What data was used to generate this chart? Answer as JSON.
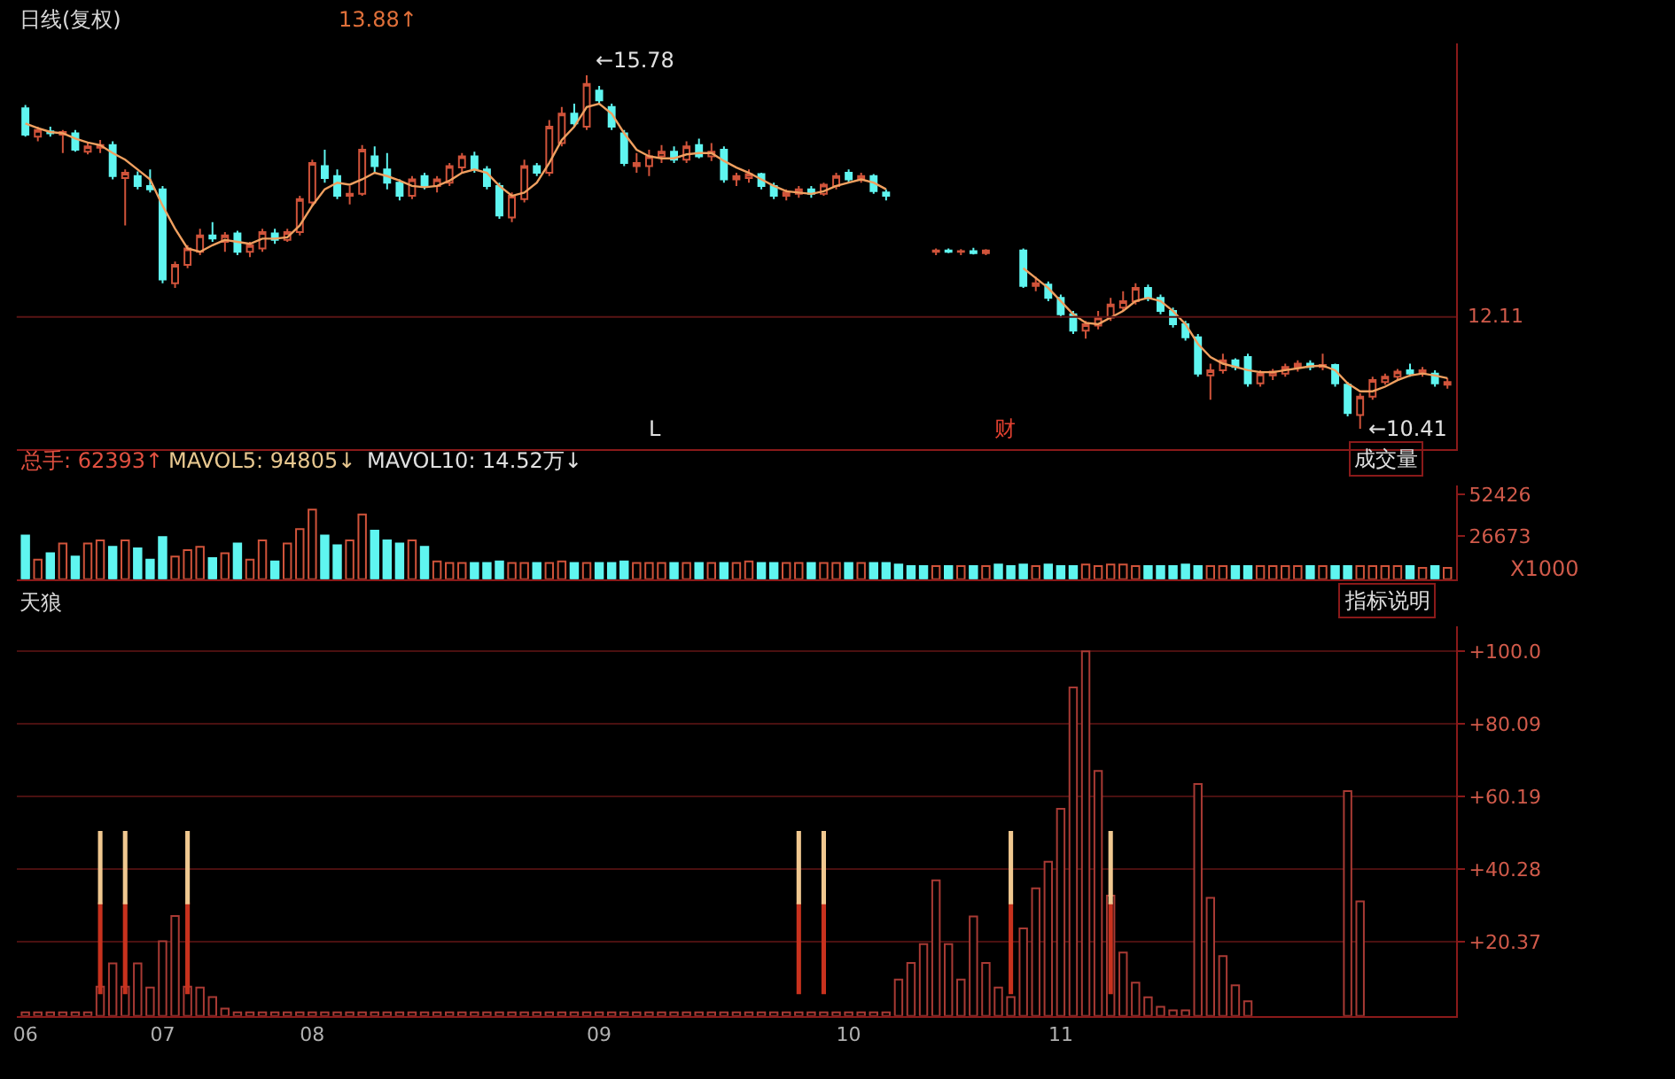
{
  "chart_data": [
    {
      "type": "candlestick",
      "title": "日线(复权)",
      "subtitle": "13.88↑",
      "categories": [
        "06",
        null,
        null,
        null,
        null,
        null,
        null,
        null,
        null,
        null,
        null,
        "07",
        null,
        null,
        null,
        null,
        null,
        null,
        null,
        null,
        null,
        null,
        null,
        "08",
        null,
        null,
        null,
        null,
        null,
        null,
        null,
        null,
        null,
        null,
        null,
        null,
        null,
        null,
        null,
        null,
        null,
        null,
        null,
        null,
        null,
        null,
        "09",
        null,
        null,
        null,
        null,
        null,
        null,
        null,
        null,
        null,
        null,
        null,
        null,
        null,
        null,
        null,
        null,
        null,
        null,
        null,
        "10",
        null,
        null,
        null,
        null,
        null,
        null,
        null,
        null,
        null,
        null,
        null,
        null,
        null,
        null,
        null,
        null,
        "11",
        null,
        null,
        null,
        null,
        null,
        null,
        null,
        null,
        null,
        null,
        null,
        null,
        null,
        null,
        null,
        null,
        null,
        null,
        null,
        null,
        null,
        null,
        null,
        null,
        null,
        null,
        null,
        null,
        null,
        null,
        null
      ],
      "ohlc": [
        [
          15.28,
          15.33,
          14.85,
          14.88
        ],
        [
          14.85,
          15.0,
          14.78,
          14.95
        ],
        [
          14.93,
          15.0,
          14.85,
          14.9
        ],
        [
          14.88,
          14.95,
          14.6,
          14.92
        ],
        [
          14.9,
          14.95,
          14.62,
          14.65
        ],
        [
          14.62,
          14.75,
          14.58,
          14.7
        ],
        [
          14.68,
          14.8,
          14.6,
          14.72
        ],
        [
          14.72,
          14.78,
          14.2,
          14.25
        ],
        [
          14.22,
          14.35,
          13.5,
          14.3
        ],
        [
          14.25,
          14.32,
          14.05,
          14.1
        ],
        [
          14.1,
          14.35,
          14.0,
          14.05
        ],
        [
          14.05,
          14.1,
          12.62,
          12.68
        ],
        [
          12.62,
          12.95,
          12.55,
          12.9
        ],
        [
          12.9,
          13.2,
          12.85,
          13.15
        ],
        [
          13.1,
          13.45,
          13.05,
          13.35
        ],
        [
          13.35,
          13.55,
          13.25,
          13.3
        ],
        [
          13.25,
          13.4,
          13.1,
          13.35
        ],
        [
          13.38,
          13.42,
          13.05,
          13.1
        ],
        [
          13.1,
          13.25,
          13.02,
          13.2
        ],
        [
          13.15,
          13.45,
          13.1,
          13.4
        ],
        [
          13.38,
          13.45,
          13.22,
          13.28
        ],
        [
          13.28,
          13.45,
          13.25,
          13.4
        ],
        [
          13.4,
          13.95,
          13.35,
          13.9
        ],
        [
          13.85,
          14.5,
          13.8,
          14.45
        ],
        [
          14.4,
          14.65,
          14.15,
          14.22
        ],
        [
          14.25,
          14.35,
          13.9,
          13.95
        ],
        [
          13.95,
          14.1,
          13.82,
          13.98
        ],
        [
          13.98,
          14.72,
          13.95,
          14.65
        ],
        [
          14.55,
          14.7,
          14.3,
          14.4
        ],
        [
          14.35,
          14.6,
          14.05,
          14.15
        ],
        [
          14.15,
          14.2,
          13.88,
          13.95
        ],
        [
          13.95,
          14.25,
          13.9,
          14.2
        ],
        [
          14.25,
          14.3,
          14.05,
          14.1
        ],
        [
          14.1,
          14.25,
          14.0,
          14.2
        ],
        [
          14.15,
          14.45,
          14.1,
          14.4
        ],
        [
          14.38,
          14.6,
          14.3,
          14.55
        ],
        [
          14.55,
          14.62,
          14.3,
          14.35
        ],
        [
          14.35,
          14.4,
          14.05,
          14.1
        ],
        [
          14.1,
          14.15,
          13.6,
          13.65
        ],
        [
          13.62,
          14.0,
          13.55,
          13.95
        ],
        [
          13.9,
          14.5,
          13.85,
          14.4
        ],
        [
          14.4,
          14.45,
          14.25,
          14.3
        ],
        [
          14.3,
          15.1,
          14.25,
          15.0
        ],
        [
          14.75,
          15.3,
          14.7,
          15.2
        ],
        [
          15.2,
          15.35,
          15.0,
          15.05
        ],
        [
          15.0,
          15.78,
          14.95,
          15.65
        ],
        [
          15.55,
          15.62,
          15.35,
          15.4
        ],
        [
          15.3,
          15.35,
          14.95,
          15.0
        ],
        [
          14.9,
          14.95,
          14.4,
          14.45
        ],
        [
          14.4,
          14.6,
          14.3,
          14.45
        ],
        [
          14.4,
          14.65,
          14.25,
          14.55
        ],
        [
          14.55,
          14.72,
          14.45,
          14.62
        ],
        [
          14.62,
          14.7,
          14.45,
          14.5
        ],
        [
          14.5,
          14.78,
          14.45,
          14.7
        ],
        [
          14.72,
          14.82,
          14.52,
          14.55
        ],
        [
          14.55,
          14.75,
          14.48,
          14.62
        ],
        [
          14.65,
          14.7,
          14.15,
          14.2
        ],
        [
          14.2,
          14.3,
          14.1,
          14.25
        ],
        [
          14.22,
          14.35,
          14.15,
          14.28
        ],
        [
          14.28,
          14.3,
          14.05,
          14.1
        ],
        [
          14.1,
          14.15,
          13.9,
          13.95
        ],
        [
          13.95,
          14.05,
          13.88,
          14.0
        ],
        [
          13.98,
          14.1,
          13.92,
          14.05
        ],
        [
          14.05,
          14.1,
          13.92,
          13.98
        ],
        [
          13.98,
          14.15,
          13.95,
          14.12
        ],
        [
          14.1,
          14.3,
          14.05,
          14.25
        ],
        [
          14.3,
          14.35,
          14.15,
          14.2
        ],
        [
          14.2,
          14.3,
          14.15,
          14.25
        ],
        [
          14.25,
          14.28,
          13.98,
          14.02
        ],
        [
          14.0,
          14.05,
          13.88,
          13.95
        ],
        null,
        null,
        null,
        [
          13.1,
          13.15,
          13.05,
          13.12
        ],
        [
          13.12,
          13.15,
          13.08,
          13.1
        ],
        [
          13.1,
          13.14,
          13.05,
          13.11
        ],
        [
          13.11,
          13.16,
          13.06,
          13.08
        ],
        [
          13.08,
          13.14,
          13.05,
          13.12
        ],
        null,
        null,
        [
          13.12,
          13.15,
          12.55,
          12.58
        ],
        [
          12.58,
          12.72,
          12.5,
          12.62
        ],
        [
          12.6,
          12.65,
          12.35,
          12.4
        ],
        [
          12.4,
          12.45,
          12.1,
          12.15
        ],
        [
          12.15,
          12.2,
          11.85,
          11.9
        ],
        [
          11.9,
          12.05,
          11.78,
          12.0
        ],
        [
          11.98,
          12.2,
          11.92,
          12.1
        ],
        [
          12.1,
          12.4,
          12.05,
          12.3
        ],
        [
          12.25,
          12.5,
          12.2,
          12.35
        ],
        [
          12.35,
          12.62,
          12.3,
          12.55
        ],
        [
          12.55,
          12.6,
          12.35,
          12.4
        ],
        [
          12.4,
          12.45,
          12.15,
          12.2
        ],
        [
          12.2,
          12.25,
          11.95,
          12.0
        ],
        [
          12.0,
          12.05,
          11.75,
          11.8
        ],
        [
          11.8,
          11.85,
          11.2,
          11.25
        ],
        [
          11.22,
          11.4,
          10.85,
          11.3
        ],
        [
          11.3,
          11.55,
          11.25,
          11.45
        ],
        [
          11.45,
          11.48,
          11.3,
          11.35
        ],
        [
          11.5,
          11.55,
          11.05,
          11.1
        ],
        [
          11.1,
          11.3,
          11.05,
          11.25
        ],
        [
          11.22,
          11.32,
          11.15,
          11.28
        ],
        [
          11.25,
          11.4,
          11.2,
          11.35
        ],
        [
          11.35,
          11.45,
          11.28,
          11.4
        ],
        [
          11.4,
          11.45,
          11.3,
          11.35
        ],
        [
          11.35,
          11.55,
          11.3,
          11.38
        ],
        [
          11.38,
          11.4,
          11.05,
          11.1
        ],
        [
          11.08,
          11.12,
          10.6,
          10.65
        ],
        [
          10.62,
          10.95,
          10.41,
          10.9
        ],
        [
          10.9,
          11.2,
          10.85,
          11.15
        ],
        [
          11.12,
          11.25,
          11.08,
          11.2
        ],
        [
          11.2,
          11.32,
          11.15,
          11.28
        ],
        [
          11.3,
          11.4,
          11.2,
          11.25
        ],
        [
          11.25,
          11.35,
          11.2,
          11.3
        ],
        [
          11.25,
          11.3,
          11.05,
          11.1
        ],
        [
          11.08,
          11.18,
          11.02,
          11.12
        ]
      ],
      "colors": [
        "#5ff5f0",
        "#d0533a",
        "#5ff5f0",
        "#d0533a",
        "#5ff5f0",
        "#d0533a",
        "#d0533a",
        "#5ff5f0",
        "#d0533a",
        "#5ff5f0",
        "#5ff5f0",
        "#5ff5f0",
        "#d0533a",
        "#d0533a",
        "#d0533a",
        "#5ff5f0",
        "#d0533a",
        "#5ff5f0",
        "#d0533a",
        "#d0533a",
        "#5ff5f0",
        "#d0533a",
        "#d0533a",
        "#d0533a",
        "#5ff5f0",
        "#5ff5f0",
        "#d0533a",
        "#d0533a",
        "#5ff5f0",
        "#5ff5f0",
        "#5ff5f0",
        "#d0533a",
        "#5ff5f0",
        "#d0533a",
        "#d0533a",
        "#d0533a",
        "#5ff5f0",
        "#5ff5f0",
        "#5ff5f0",
        "#d0533a",
        "#d0533a",
        "#5ff5f0",
        "#d0533a",
        "#d0533a",
        "#5ff5f0",
        "#d0533a",
        "#5ff5f0",
        "#5ff5f0",
        "#5ff5f0",
        "#d0533a",
        "#d0533a",
        "#d0533a",
        "#5ff5f0",
        "#d0533a",
        "#5ff5f0",
        "#d0533a",
        "#5ff5f0",
        "#d0533a",
        "#d0533a",
        "#5ff5f0",
        "#5ff5f0",
        "#d0533a",
        "#d0533a",
        "#5ff5f0",
        "#d0533a",
        "#d0533a",
        "#5ff5f0",
        "#d0533a",
        "#5ff5f0",
        "#5ff5f0",
        "#5ff5f0",
        "#5ff5f0",
        "#5ff5f0",
        "#d0533a",
        "#5ff5f0",
        "#d0533a",
        "#5ff5f0",
        "#d0533a",
        "#5ff5f0",
        "#5ff5f0",
        "#5ff5f0",
        "#d0533a",
        "#5ff5f0",
        "#5ff5f0",
        "#5ff5f0",
        "#d0533a",
        "#d0533a",
        "#d0533a",
        "#d0533a",
        "#d0533a",
        "#5ff5f0",
        "#5ff5f0",
        "#5ff5f0",
        "#5ff5f0",
        "#5ff5f0",
        "#d0533a",
        "#d0533a",
        "#5ff5f0",
        "#5ff5f0",
        "#d0533a",
        "#d0533a",
        "#d0533a",
        "#d0533a",
        "#5ff5f0",
        "#d0533a",
        "#5ff5f0",
        "#5ff5f0",
        "#d0533a",
        "#d0533a",
        "#d0533a",
        "#d0533a",
        "#5ff5f0",
        "#d0533a",
        "#5ff5f0",
        "#d0533a"
      ],
      "series": [
        {
          "type": "line",
          "color": "#f0a060",
          "values": [
            15.05,
            14.98,
            14.92,
            14.9,
            14.82,
            14.76,
            14.72,
            14.6,
            14.5,
            14.35,
            14.2,
            13.8,
            13.45,
            13.15,
            13.1,
            13.2,
            13.28,
            13.25,
            13.22,
            13.3,
            13.3,
            13.32,
            13.5,
            13.8,
            14.05,
            14.15,
            14.12,
            14.2,
            14.3,
            14.25,
            14.18,
            14.1,
            14.08,
            14.1,
            14.18,
            14.3,
            14.35,
            14.3,
            14.1,
            13.95,
            14.0,
            14.15,
            14.45,
            14.8,
            15.0,
            15.3,
            15.35,
            15.2,
            14.9,
            14.65,
            14.55,
            14.52,
            14.52,
            14.58,
            14.6,
            14.6,
            14.48,
            14.38,
            14.3,
            14.2,
            14.1,
            14.02,
            14.0,
            13.98,
            14.02,
            14.1,
            14.15,
            14.2,
            14.15,
            14.05,
            null,
            null,
            null,
            null,
            null,
            null,
            null,
            null,
            null,
            null,
            12.85,
            12.7,
            12.55,
            12.35,
            12.15,
            12.02,
            12.0,
            12.1,
            12.2,
            12.35,
            12.4,
            12.35,
            12.2,
            12.0,
            11.7,
            11.5,
            11.4,
            11.35,
            11.3,
            11.27,
            11.27,
            11.3,
            11.33,
            11.36,
            11.37,
            11.3,
            11.1,
            10.98,
            10.98,
            11.05,
            11.15,
            11.22,
            11.25,
            11.22,
            11.18
          ]
        }
      ],
      "ref_lines": [
        {
          "axis": "y",
          "value": 12.11,
          "label": "12.11",
          "color": "#5a1414"
        }
      ],
      "tick_labels": false,
      "annotations": [
        "←15.78",
        "←10.41",
        "L",
        "财"
      ]
    },
    {
      "type": "bar",
      "title": "总手: 62393↑",
      "categories": [
        "06",
        null,
        null,
        null,
        null,
        null,
        null,
        null,
        null,
        null,
        null,
        "07",
        null,
        null,
        null,
        null,
        null,
        null,
        null,
        null,
        null,
        null,
        null,
        "08",
        null,
        null,
        null,
        null,
        null,
        null,
        null,
        null,
        null,
        null,
        null,
        null,
        null,
        null,
        null,
        null,
        null,
        null,
        null,
        null,
        null,
        null,
        "09",
        null,
        null,
        null,
        null,
        null,
        null,
        null,
        null,
        null,
        null,
        null,
        null,
        null,
        null,
        null,
        null,
        null,
        null,
        null,
        "10",
        null,
        null,
        null,
        null,
        null,
        null,
        null,
        null,
        null,
        null,
        null,
        null,
        null,
        null,
        null,
        null,
        "11",
        null,
        null,
        null,
        null,
        null,
        null,
        null,
        null,
        null,
        null,
        null,
        null,
        null,
        null,
        null,
        null,
        null,
        null,
        null,
        null,
        null,
        null,
        null,
        null,
        null,
        null,
        null,
        null,
        null,
        null,
        null
      ],
      "values": [
        27000,
        12000,
        16000,
        22000,
        14000,
        22000,
        24000,
        20000,
        24000,
        19000,
        12000,
        26000,
        14000,
        18000,
        20000,
        13000,
        16000,
        22000,
        12000,
        24000,
        11000,
        22000,
        31000,
        43000,
        27000,
        21000,
        24000,
        40000,
        30000,
        24000,
        22000,
        24000,
        20000,
        11000,
        10000,
        10000,
        10000,
        10000,
        11000,
        10000,
        10000,
        10000,
        10000,
        11000,
        10000,
        10000,
        10000,
        10000,
        11000,
        10000,
        10000,
        10000,
        10000,
        10000,
        10000,
        10000,
        10000,
        10000,
        11000,
        10000,
        10000,
        10000,
        10000,
        10000,
        10000,
        10000,
        10000,
        10000,
        10000,
        10000,
        9000,
        8000,
        8000,
        8000,
        8000,
        8000,
        8000,
        8000,
        9000,
        8000,
        9000,
        8000,
        9000,
        8000,
        8000,
        9000,
        8000,
        9000,
        9000,
        8000,
        8000,
        8000,
        8000,
        9000,
        8000,
        8000,
        8000,
        8000,
        8000,
        8000,
        8000,
        8000,
        8000,
        8000,
        8000,
        8000,
        8000,
        8000,
        8000,
        8000,
        8000,
        8000,
        7000,
        8000,
        7000
      ],
      "colors": [
        "#5ff5f0",
        "#d0533a",
        "#5ff5f0",
        "#d0533a",
        "#5ff5f0",
        "#d0533a",
        "#d0533a",
        "#5ff5f0",
        "#d0533a",
        "#5ff5f0",
        "#5ff5f0",
        "#5ff5f0",
        "#d0533a",
        "#d0533a",
        "#d0533a",
        "#5ff5f0",
        "#d0533a",
        "#5ff5f0",
        "#d0533a",
        "#d0533a",
        "#5ff5f0",
        "#d0533a",
        "#d0533a",
        "#d0533a",
        "#5ff5f0",
        "#5ff5f0",
        "#d0533a",
        "#d0533a",
        "#5ff5f0",
        "#5ff5f0",
        "#5ff5f0",
        "#d0533a",
        "#5ff5f0",
        "#d0533a",
        "#d0533a",
        "#d0533a",
        "#5ff5f0",
        "#5ff5f0",
        "#5ff5f0",
        "#d0533a",
        "#d0533a",
        "#5ff5f0",
        "#d0533a",
        "#d0533a",
        "#5ff5f0",
        "#d0533a",
        "#5ff5f0",
        "#5ff5f0",
        "#5ff5f0",
        "#d0533a",
        "#d0533a",
        "#d0533a",
        "#5ff5f0",
        "#d0533a",
        "#5ff5f0",
        "#d0533a",
        "#5ff5f0",
        "#d0533a",
        "#d0533a",
        "#5ff5f0",
        "#5ff5f0",
        "#d0533a",
        "#d0533a",
        "#5ff5f0",
        "#d0533a",
        "#d0533a",
        "#5ff5f0",
        "#d0533a",
        "#5ff5f0",
        "#5ff5f0",
        "#5ff5f0",
        "#5ff5f0",
        "#5ff5f0",
        "#d0533a",
        "#5ff5f0",
        "#d0533a",
        "#5ff5f0",
        "#d0533a",
        "#5ff5f0",
        "#5ff5f0",
        "#5ff5f0",
        "#d0533a",
        "#5ff5f0",
        "#5ff5f0",
        "#5ff5f0",
        "#d0533a",
        "#d0533a",
        "#d0533a",
        "#d0533a",
        "#d0533a",
        "#5ff5f0",
        "#5ff5f0",
        "#5ff5f0",
        "#5ff5f0",
        "#5ff5f0",
        "#d0533a",
        "#d0533a",
        "#5ff5f0",
        "#5ff5f0",
        "#d0533a",
        "#d0533a",
        "#d0533a",
        "#d0533a",
        "#5ff5f0",
        "#d0533a",
        "#5ff5f0",
        "#5ff5f0",
        "#d0533a",
        "#d0533a",
        "#d0533a",
        "#d0533a",
        "#5ff5f0",
        "#d0533a",
        "#5ff5f0",
        "#d0533a"
      ],
      "ylim": [
        0,
        58000
      ],
      "yticks": [
        26673,
        52426
      ],
      "tick_labels": "y",
      "annotations": [
        "MAVOL5: 94805↓",
        "MAVOL10: 14.52万↓",
        "成交量",
        "X1000"
      ]
    },
    {
      "type": "bar",
      "title": "天狼",
      "categories": [
        "06",
        null,
        null,
        null,
        null,
        null,
        null,
        null,
        null,
        null,
        null,
        "07",
        null,
        null,
        null,
        null,
        null,
        null,
        null,
        null,
        null,
        null,
        null,
        "08",
        null,
        null,
        null,
        null,
        null,
        null,
        null,
        null,
        null,
        null,
        null,
        null,
        null,
        null,
        null,
        null,
        null,
        null,
        null,
        null,
        null,
        null,
        "09",
        null,
        null,
        null,
        null,
        null,
        null,
        null,
        null,
        null,
        null,
        null,
        null,
        null,
        null,
        null,
        null,
        null,
        null,
        null,
        "10",
        null,
        null,
        null,
        null,
        null,
        null,
        null,
        null,
        null,
        null,
        null,
        null,
        null,
        null,
        null,
        null,
        "11",
        null,
        null,
        null,
        null,
        null,
        null,
        null,
        null,
        null,
        null,
        null,
        null,
        null,
        null,
        null,
        null,
        null,
        null,
        null,
        null,
        null,
        null,
        null,
        null,
        null,
        null,
        null,
        null,
        null,
        null,
        null
      ],
      "series": [
        {
          "color": "#a83a34",
          "values": [
            1,
            1,
            1,
            1,
            1,
            1,
            8,
            14.4,
            8,
            14.4,
            7.8,
            20.5,
            27.4,
            8,
            7.8,
            5.2,
            2,
            1,
            1,
            1,
            1,
            1,
            1,
            1,
            1,
            1,
            1,
            1,
            1,
            1,
            1,
            1,
            1,
            1,
            1,
            1,
            1,
            1,
            1,
            1,
            1,
            1,
            1,
            1,
            1,
            1,
            1,
            1,
            1,
            1,
            1,
            1,
            1,
            1,
            1,
            1,
            1,
            1,
            1,
            1,
            1,
            1,
            1,
            1,
            1,
            1,
            1,
            1,
            1,
            1,
            10.0,
            14.5,
            19.7,
            37.2,
            19.7,
            10.0,
            27.3,
            14.5,
            7.8,
            5.2,
            24.0,
            35.0,
            42.3,
            56.8,
            90.1,
            100.0,
            67.2,
            33,
            17.4,
            9.1,
            5.1,
            2.5,
            1.5,
            1.5,
            63.6,
            32.4,
            16.4,
            8.4,
            4,
            null,
            null,
            null,
            null,
            null,
            null,
            null,
            61.7,
            31.4,
            null,
            null,
            null,
            null,
            null,
            null,
            null
          ]
        },
        {
          "color": "#c8321e",
          "values": [
            null,
            null,
            null,
            null,
            null,
            null,
            24.7,
            null,
            24.7,
            null,
            null,
            null,
            null,
            24.7,
            null,
            null,
            null,
            null,
            null,
            null,
            null,
            null,
            null,
            null,
            null,
            null,
            null,
            null,
            null,
            null,
            null,
            null,
            null,
            null,
            null,
            null,
            null,
            null,
            null,
            null,
            null,
            null,
            null,
            null,
            null,
            null,
            null,
            null,
            null,
            null,
            null,
            null,
            null,
            null,
            null,
            null,
            null,
            null,
            null,
            null,
            null,
            null,
            24.7,
            null,
            24.7,
            null,
            null,
            null,
            null,
            null,
            null,
            null,
            null,
            null,
            null,
            null,
            null,
            null,
            null,
            24.7,
            null,
            null,
            null,
            null,
            null,
            null,
            null,
            24.7,
            null,
            null,
            null,
            null,
            null,
            null,
            null,
            null,
            null,
            null,
            null,
            null,
            null,
            null,
            null,
            null,
            null,
            null,
            null,
            null,
            null,
            null,
            null,
            null,
            null,
            null,
            null
          ],
          "base": [
            null,
            null,
            null,
            null,
            null,
            null,
            6.2,
            null,
            6.2,
            null,
            null,
            null,
            null,
            6.2,
            null,
            null,
            null,
            null,
            null,
            null,
            null,
            null,
            null,
            null,
            null,
            null,
            null,
            null,
            null,
            null,
            null,
            null,
            null,
            null,
            null,
            null,
            null,
            null,
            null,
            null,
            null,
            null,
            null,
            null,
            null,
            null,
            null,
            null,
            null,
            null,
            null,
            null,
            null,
            null,
            null,
            null,
            null,
            null,
            null,
            null,
            null,
            null,
            6.2,
            null,
            6.2,
            null,
            null,
            null,
            null,
            null,
            null,
            null,
            null,
            null,
            null,
            null,
            null,
            null,
            null,
            6.2,
            null,
            null,
            null,
            null,
            null,
            null,
            null,
            6.2,
            null,
            null,
            null,
            null,
            null,
            null,
            null,
            null,
            null,
            null,
            null,
            null,
            null,
            null,
            null,
            null,
            null,
            null,
            null,
            null,
            null,
            null,
            null,
            null,
            null,
            null,
            null
          ]
        },
        {
          "color": "#f0c890",
          "values": [
            null,
            null,
            null,
            null,
            null,
            null,
            19.6,
            null,
            19.6,
            null,
            null,
            null,
            null,
            19.6,
            null,
            null,
            null,
            null,
            null,
            null,
            null,
            null,
            null,
            null,
            null,
            null,
            null,
            null,
            null,
            null,
            null,
            null,
            null,
            null,
            null,
            null,
            null,
            null,
            null,
            null,
            null,
            null,
            null,
            null,
            null,
            null,
            null,
            null,
            null,
            null,
            null,
            null,
            null,
            null,
            null,
            null,
            null,
            null,
            null,
            null,
            null,
            null,
            19.6,
            null,
            19.6,
            null,
            null,
            null,
            null,
            null,
            null,
            null,
            null,
            null,
            null,
            null,
            null,
            null,
            null,
            19.6,
            null,
            null,
            null,
            null,
            null,
            null,
            null,
            19.6,
            null,
            null,
            null,
            null,
            null,
            null,
            null,
            null,
            null,
            null,
            null,
            null,
            null,
            null,
            null,
            null,
            null,
            null,
            null,
            null,
            null,
            null,
            null,
            null,
            null,
            null,
            null
          ],
          "base": [
            null,
            null,
            null,
            null,
            null,
            null,
            30.9,
            null,
            30.9,
            null,
            null,
            null,
            null,
            30.9,
            null,
            null,
            null,
            null,
            null,
            null,
            null,
            null,
            null,
            null,
            null,
            null,
            null,
            null,
            null,
            null,
            null,
            null,
            null,
            null,
            null,
            null,
            null,
            null,
            null,
            null,
            null,
            null,
            null,
            null,
            null,
            null,
            null,
            null,
            null,
            null,
            null,
            null,
            null,
            null,
            null,
            null,
            null,
            null,
            null,
            null,
            null,
            null,
            30.9,
            null,
            30.9,
            null,
            null,
            null,
            null,
            null,
            null,
            null,
            null,
            null,
            null,
            null,
            null,
            null,
            null,
            30.9,
            null,
            null,
            null,
            null,
            null,
            null,
            null,
            30.9,
            null,
            null,
            null,
            null,
            null,
            null,
            null,
            null,
            null,
            null,
            null,
            null,
            null,
            null,
            null,
            null,
            null,
            null,
            null,
            null,
            null,
            null,
            null,
            null,
            null,
            null,
            null
          ]
        }
      ],
      "ylim": [
        0,
        107
      ],
      "yticks": [
        {
          "value": 20.37,
          "label": "+20.37"
        },
        {
          "value": 40.28,
          "label": "+40.28"
        },
        {
          "value": 60.19,
          "label": "+60.19"
        },
        {
          "value": 80.09,
          "label": "+80.09"
        },
        {
          "value": 100,
          "label": "+100.0"
        }
      ],
      "grid": "y",
      "annotations": [
        "指标说明"
      ]
    }
  ]
}
